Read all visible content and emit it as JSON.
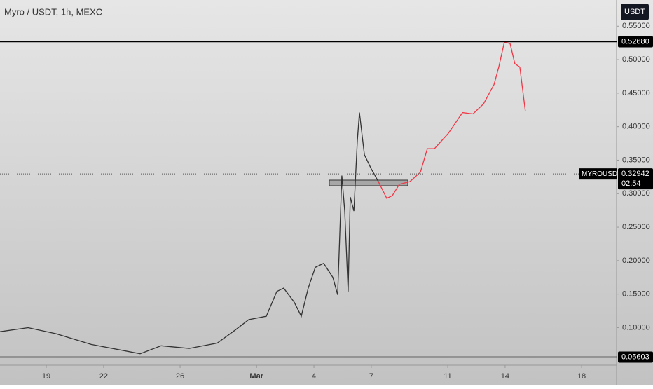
{
  "chart_data": {
    "type": "line",
    "title": "Myro / USDT, 1h, MEXC",
    "currency": "USDT",
    "xlim": [
      -2.42,
      29.83
    ],
    "ylim": [
      0.044,
      0.589
    ],
    "xticks": [
      {
        "value": 0,
        "label": "19"
      },
      {
        "value": 3,
        "label": "22"
      },
      {
        "value": 7,
        "label": "26"
      },
      {
        "value": 11,
        "label": "Mar"
      },
      {
        "value": 14,
        "label": "4"
      },
      {
        "value": 17,
        "label": "7"
      },
      {
        "value": 21,
        "label": "11"
      },
      {
        "value": 24,
        "label": "14"
      },
      {
        "value": 28,
        "label": "18"
      }
    ],
    "yticks": [
      {
        "value": 0.55,
        "label": "0.55000"
      },
      {
        "value": 0.5,
        "label": "0.50000"
      },
      {
        "value": 0.45,
        "label": "0.45000"
      },
      {
        "value": 0.4,
        "label": "0.40000"
      },
      {
        "value": 0.35,
        "label": "0.35000"
      },
      {
        "value": 0.3,
        "label": "0.30000"
      },
      {
        "value": 0.25,
        "label": "0.25000"
      },
      {
        "value": 0.2,
        "label": "0.20000"
      },
      {
        "value": 0.15,
        "label": "0.15000"
      },
      {
        "value": 0.1,
        "label": "0.10000"
      }
    ],
    "series": [
      {
        "color": "#333333",
        "x": [
          -2.42,
          -0.95,
          0.51,
          2.35,
          4.91,
          6.01,
          7.48,
          8.94,
          9.86,
          10.59,
          11.51,
          12.06,
          12.42,
          12.97,
          13.34,
          13.7,
          14.07,
          14.51,
          14.99,
          15.24,
          15.46,
          15.61,
          15.79,
          15.9,
          16.09,
          16.27,
          16.38,
          16.64,
          17.0,
          17.37
        ],
        "values": [
          0.094,
          0.1,
          0.091,
          0.075,
          0.061,
          0.073,
          0.069,
          0.077,
          0.096,
          0.112,
          0.117,
          0.154,
          0.159,
          0.138,
          0.117,
          0.159,
          0.19,
          0.196,
          0.175,
          0.149,
          0.327,
          0.274,
          0.154,
          0.295,
          0.274,
          0.379,
          0.421,
          0.358,
          0.337,
          0.318
        ]
      },
      {
        "color": "#f23645",
        "x": [
          17.37,
          17.81,
          18.1,
          18.47,
          19.02,
          19.57,
          19.93,
          20.3,
          21.03,
          21.77,
          22.32,
          22.87,
          23.42,
          23.67,
          23.96,
          24.26,
          24.51,
          24.77,
          25.06
        ],
        "values": [
          0.318,
          0.293,
          0.297,
          0.314,
          0.318,
          0.332,
          0.367,
          0.367,
          0.39,
          0.421,
          0.419,
          0.434,
          0.463,
          0.489,
          0.526,
          0.524,
          0.494,
          0.489,
          0.423
        ]
      }
    ],
    "levels": [
      {
        "value": 0.5268,
        "label": "0.52680"
      },
      {
        "value": 0.05603,
        "label": "0.05603"
      }
    ],
    "current": {
      "name": "MYROUSDT",
      "value": 0.32942,
      "label": "0.32942",
      "countdown": "02:54"
    }
  }
}
